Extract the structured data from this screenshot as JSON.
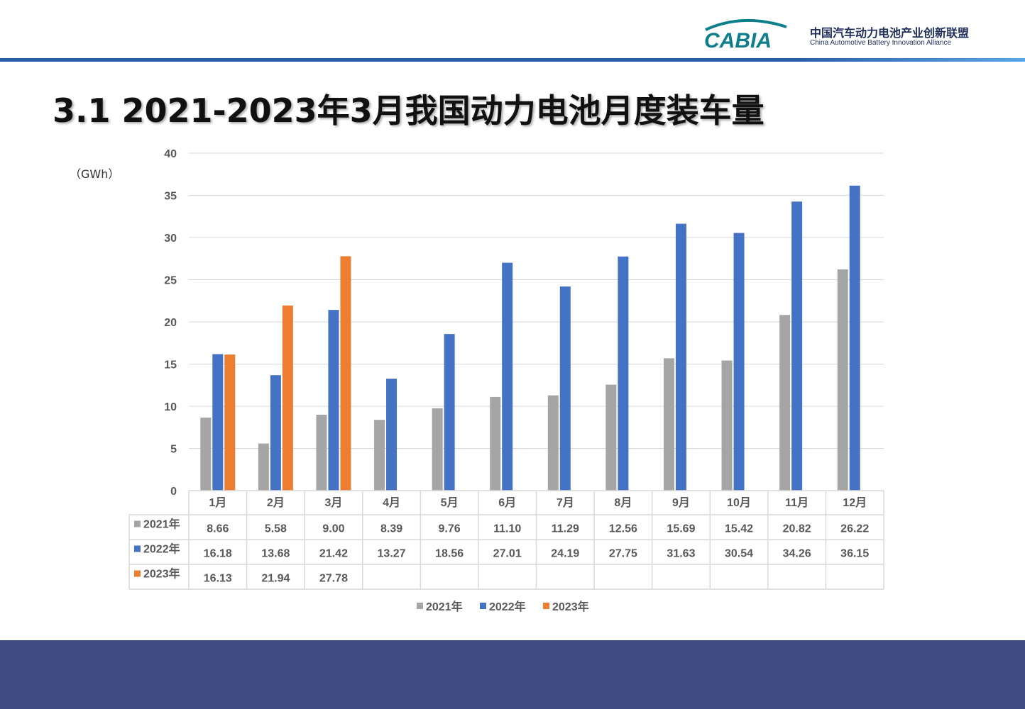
{
  "header": {
    "logo_text": "CABIA",
    "org_name_cn": "中国汽车动力电池产业创新联盟",
    "org_name_en": "China Automotive Battery Innovation Alliance"
  },
  "title": "3.1 2021-2023年3月我国动力电池月度装车量",
  "colors": {
    "s2021": "#a5a5a5",
    "s2022": "#4472c4",
    "s2023": "#ed7d31",
    "accent": "#2a5fa8",
    "footer": "#3f4b80"
  },
  "chart_data": {
    "type": "bar",
    "unit_label": "（GWh）",
    "ylim": [
      0,
      40
    ],
    "yticks": [
      "0",
      "5",
      "10",
      "15",
      "20",
      "25",
      "30",
      "35",
      "40"
    ],
    "grid": true,
    "legend_position": "bottom",
    "categories": [
      "1月",
      "2月",
      "3月",
      "4月",
      "5月",
      "6月",
      "7月",
      "8月",
      "9月",
      "10月",
      "11月",
      "12月"
    ],
    "series": [
      {
        "name": "2021年",
        "values": [
          8.66,
          5.58,
          9.0,
          8.39,
          9.76,
          11.1,
          11.29,
          12.56,
          15.69,
          15.42,
          20.82,
          26.22
        ],
        "labels": [
          "8.66",
          "5.58",
          "9.00",
          "8.39",
          "9.76",
          "11.10",
          "11.29",
          "12.56",
          "15.69",
          "15.42",
          "20.82",
          "26.22"
        ]
      },
      {
        "name": "2022年",
        "values": [
          16.18,
          13.68,
          21.42,
          13.27,
          18.56,
          27.01,
          24.19,
          27.75,
          31.63,
          30.54,
          34.26,
          36.15
        ],
        "labels": [
          "16.18",
          "13.68",
          "21.42",
          "13.27",
          "18.56",
          "27.01",
          "24.19",
          "27.75",
          "31.63",
          "30.54",
          "34.26",
          "36.15"
        ]
      },
      {
        "name": "2023年",
        "values": [
          16.13,
          21.94,
          27.78,
          null,
          null,
          null,
          null,
          null,
          null,
          null,
          null,
          null
        ],
        "labels": [
          "16.13",
          "21.94",
          "27.78",
          "",
          "",
          "",
          "",
          "",
          "",
          "",
          "",
          ""
        ]
      }
    ]
  }
}
